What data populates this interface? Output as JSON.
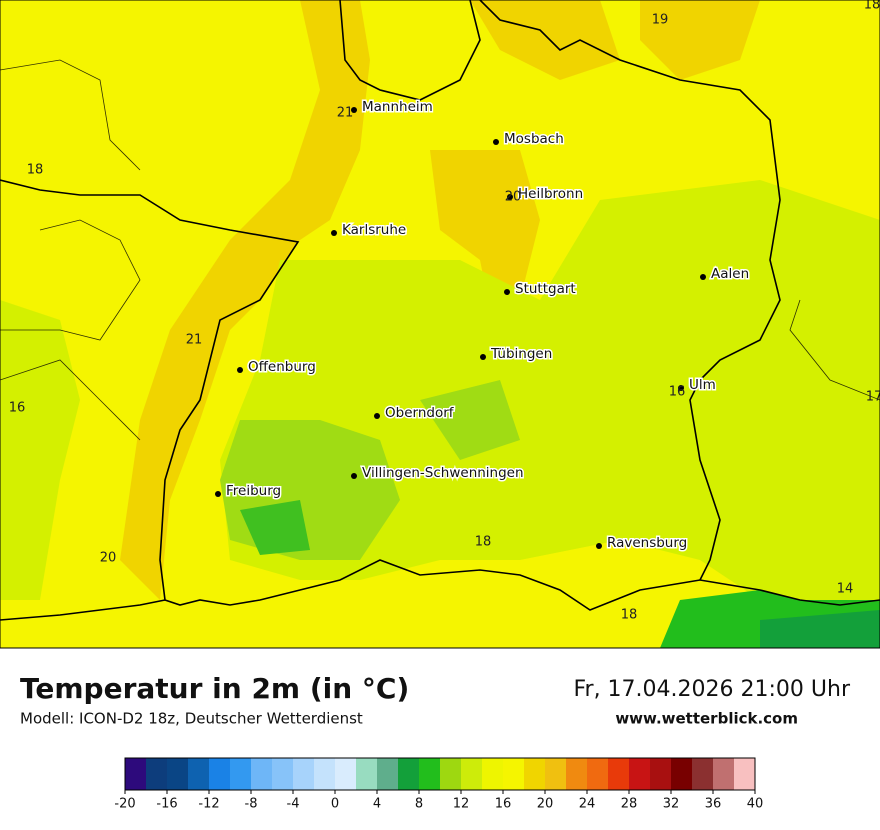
{
  "map": {
    "cities": [
      "Mannheim",
      "Mosbach",
      "Heilbronn",
      "Karlsruhe",
      "Aalen",
      "Stuttgart",
      "Tübingen",
      "Offenburg",
      "Ulm",
      "Oberndorf",
      "Villingen-Schwenningen",
      "Freiburg",
      "Ravensburg"
    ],
    "temperature_labels": [
      19,
      18,
      21,
      18,
      20,
      21,
      16,
      17,
      16,
      20,
      18,
      18,
      14
    ]
  },
  "footer": {
    "title": "Temperatur in 2m (in °C)",
    "model": "Modell: ICON-D2 18z, Deutscher Wetterdienst",
    "datetime": "Fr, 17.04.2026 21:00 Uhr",
    "website": "www.wetterblick.com"
  },
  "legend": {
    "range": [
      -20,
      40
    ],
    "colors": [
      "#2d0a7c",
      "#0d3d7c",
      "#0a4585",
      "#0e62b0",
      "#1a82e6",
      "#3399f0",
      "#6eb6f7",
      "#87c3f9",
      "#a7d3fb",
      "#c4e2fc",
      "#d9ecfd",
      "#98dcc0",
      "#5fae8c",
      "#13a03a",
      "#22be1c",
      "#9ed810",
      "#cdec0a",
      "#eef500",
      "#f5f500",
      "#f0d500",
      "#f0c010",
      "#f08a10",
      "#f06a10",
      "#e83a0a",
      "#c81414",
      "#a81010",
      "#780000",
      "#8b3030",
      "#c07070",
      "#f8c0c0"
    ],
    "ticks": [
      -20,
      -16,
      -12,
      -8,
      -4,
      0,
      4,
      8,
      12,
      16,
      20,
      24,
      28,
      32,
      36,
      40
    ]
  }
}
